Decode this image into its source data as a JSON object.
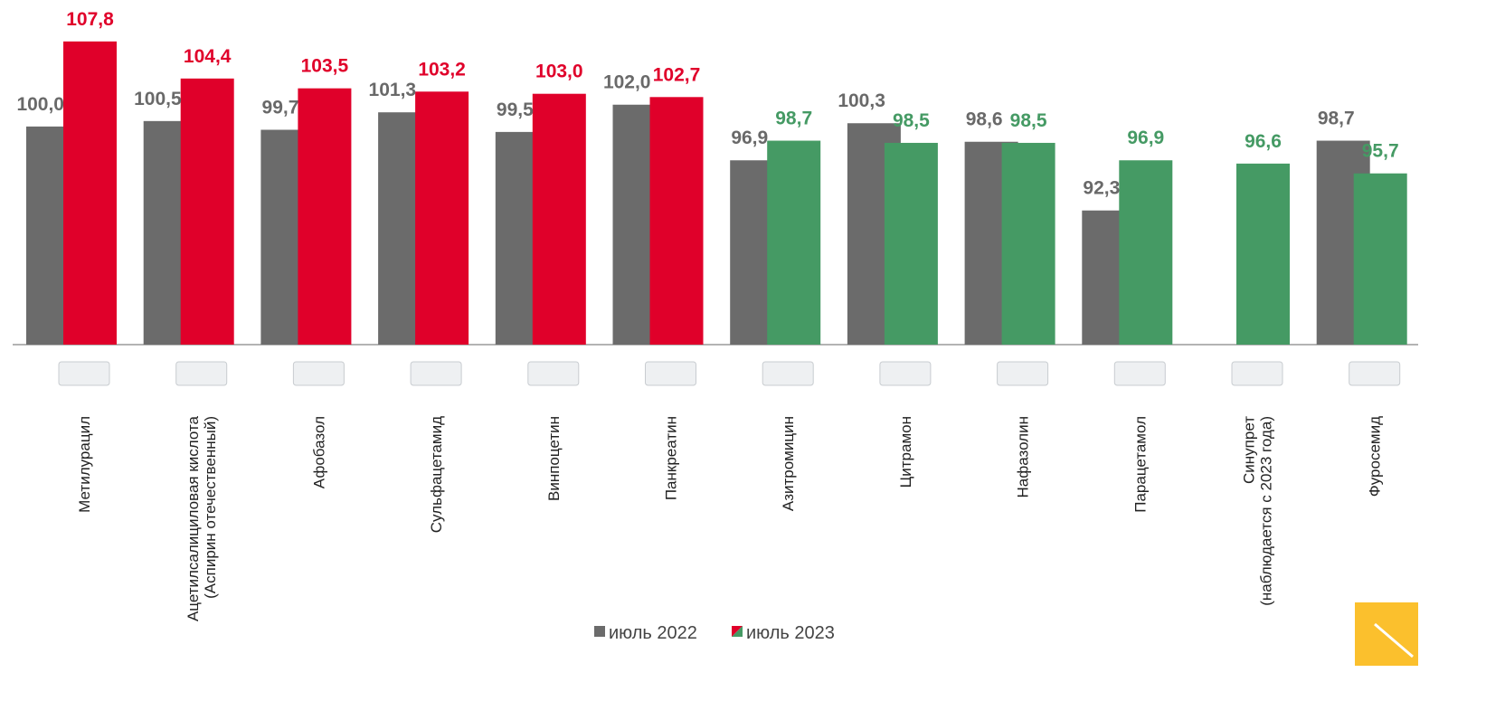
{
  "chart_data": {
    "type": "bar",
    "categories": [
      "Метилурацил",
      "Ацетилсалициловая кислота\n(Аспирин отечественный)",
      "Афобазол",
      "Сульфацетамид",
      "Винпоцетин",
      "Панкреатин",
      "Азитромицин",
      "Цитрамон",
      "Нафазолин",
      "Парацетамол",
      "Синупрет\n(наблюдается с 2023 года)",
      "Фуросемид"
    ],
    "series": [
      {
        "name": "июль 2022",
        "color": "#6b6b6b",
        "label_color": "#696969",
        "values": [
          100.0,
          100.5,
          99.7,
          101.3,
          99.5,
          102.0,
          96.9,
          100.3,
          98.6,
          92.3,
          null,
          98.7
        ],
        "value_labels": [
          "100,0",
          "100,5",
          "99,7",
          "101,3",
          "99,5",
          "102,0",
          "96,9",
          "100,3",
          "98,6",
          "92,3",
          null,
          "98,7"
        ]
      },
      {
        "name": "июль 2023",
        "colors": [
          "#e0002a",
          "#e0002a",
          "#e0002a",
          "#e0002a",
          "#e0002a",
          "#e0002a",
          "#459a64",
          "#459a64",
          "#459a64",
          "#459a64",
          "#459a64",
          "#459a64"
        ],
        "values": [
          107.8,
          104.4,
          103.5,
          103.2,
          103.0,
          102.7,
          98.7,
          98.5,
          98.5,
          96.9,
          96.6,
          95.7
        ],
        "value_labels": [
          "107,8",
          "104,4",
          "103,5",
          "103,2",
          "103,0",
          "102,7",
          "98,7",
          "98,5",
          "98,5",
          "96,9",
          "96,6",
          "95,7"
        ]
      }
    ],
    "ylim": [
      80,
      111.6
    ],
    "grid": false
  }
}
